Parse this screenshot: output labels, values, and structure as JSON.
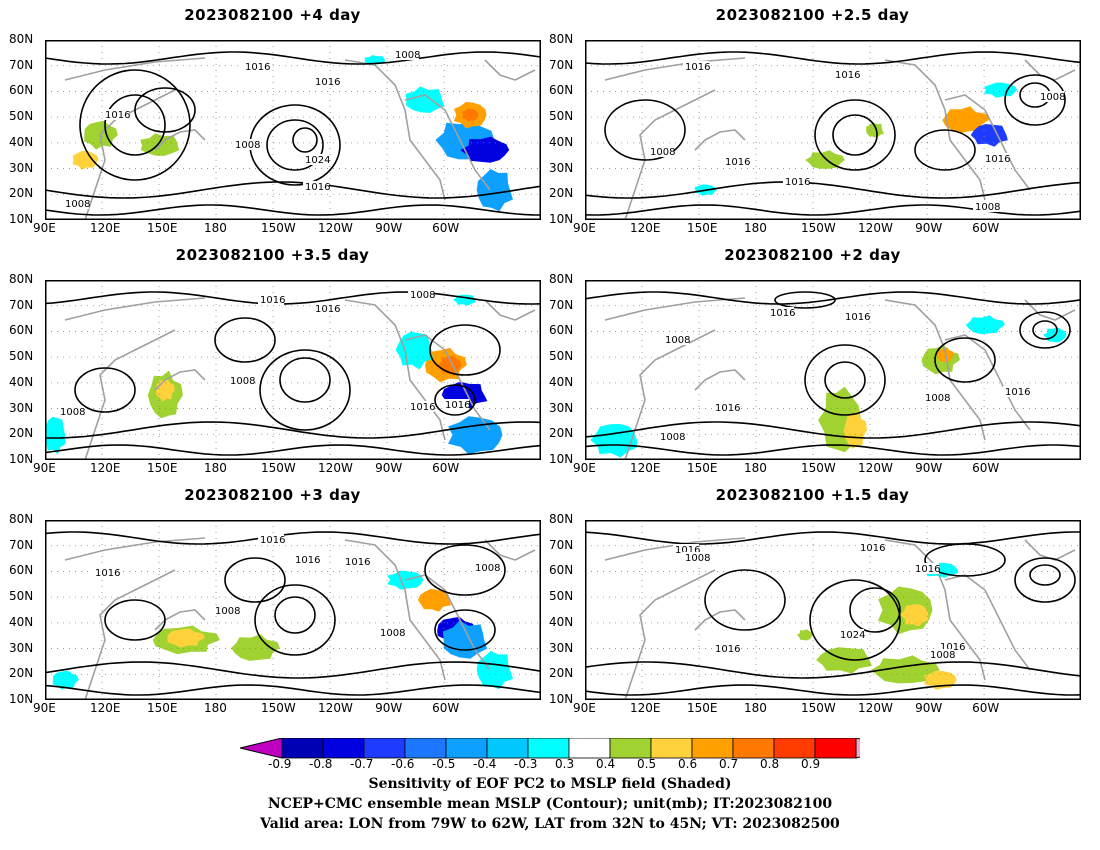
{
  "panels": [
    {
      "title": "2023082100  +4 day"
    },
    {
      "title": "2023082100  +2.5 day"
    },
    {
      "title": "2023082100  +3.5 day"
    },
    {
      "title": "2023082100  +2 day"
    },
    {
      "title": "2023082100  +3 day"
    },
    {
      "title": "2023082100  +1.5 day"
    }
  ],
  "axes": {
    "lat_labels": [
      "80N",
      "70N",
      "60N",
      "50N",
      "40N",
      "30N",
      "20N",
      "10N"
    ],
    "lon_labels": [
      "90E",
      "120E",
      "150E",
      "180",
      "150W",
      "120W",
      "90W",
      "60W"
    ]
  },
  "colorbar": {
    "ticks": [
      "-0.9",
      "-0.8",
      "-0.7",
      "-0.6",
      "-0.5",
      "-0.4",
      "-0.3",
      "0.3",
      "0.4",
      "0.5",
      "0.6",
      "0.7",
      "0.8",
      "0.9"
    ],
    "colors": [
      "#c000c0",
      "#0000b4",
      "#0000e0",
      "#1e3cff",
      "#1e78ff",
      "#0ea0ff",
      "#00c8ff",
      "#00ffff",
      "#ffffff",
      "#a0d232",
      "#ffd23c",
      "#ffa000",
      "#ff7800",
      "#ff3c00",
      "#ff0000",
      "#ffa0c8"
    ]
  },
  "contour_labels": {
    "p0": [
      "1016",
      "1016",
      "1016",
      "1008",
      "1024",
      "1016",
      "1008",
      "1008"
    ],
    "p1": [
      "1016",
      "1016",
      "1008",
      "1016",
      "1016",
      "1016",
      "1008",
      "1008"
    ],
    "p2": [
      "1016",
      "1016",
      "1008",
      "1008",
      "1008",
      "1016",
      "1016"
    ],
    "p3": [
      "1016",
      "1016",
      "1008",
      "1016",
      "1008",
      "1016",
      "1008"
    ],
    "p4": [
      "1016",
      "1016",
      "1016",
      "1016",
      "1008",
      "1008",
      "1008"
    ],
    "p5": [
      "1016",
      "1008",
      "1016",
      "1016",
      "1024",
      "1016",
      "1008",
      "1016"
    ]
  },
  "caption": {
    "line1": "Sensitivity of EOF PC2 to MSLP field (Shaded)",
    "line2": "NCEP+CMC ensemble mean MSLP (Contour); unit(mb); IT:2023082100",
    "line3": "Valid area: LON from 79W to 62W, LAT from 32N to 45N; VT: 2023082500"
  }
}
